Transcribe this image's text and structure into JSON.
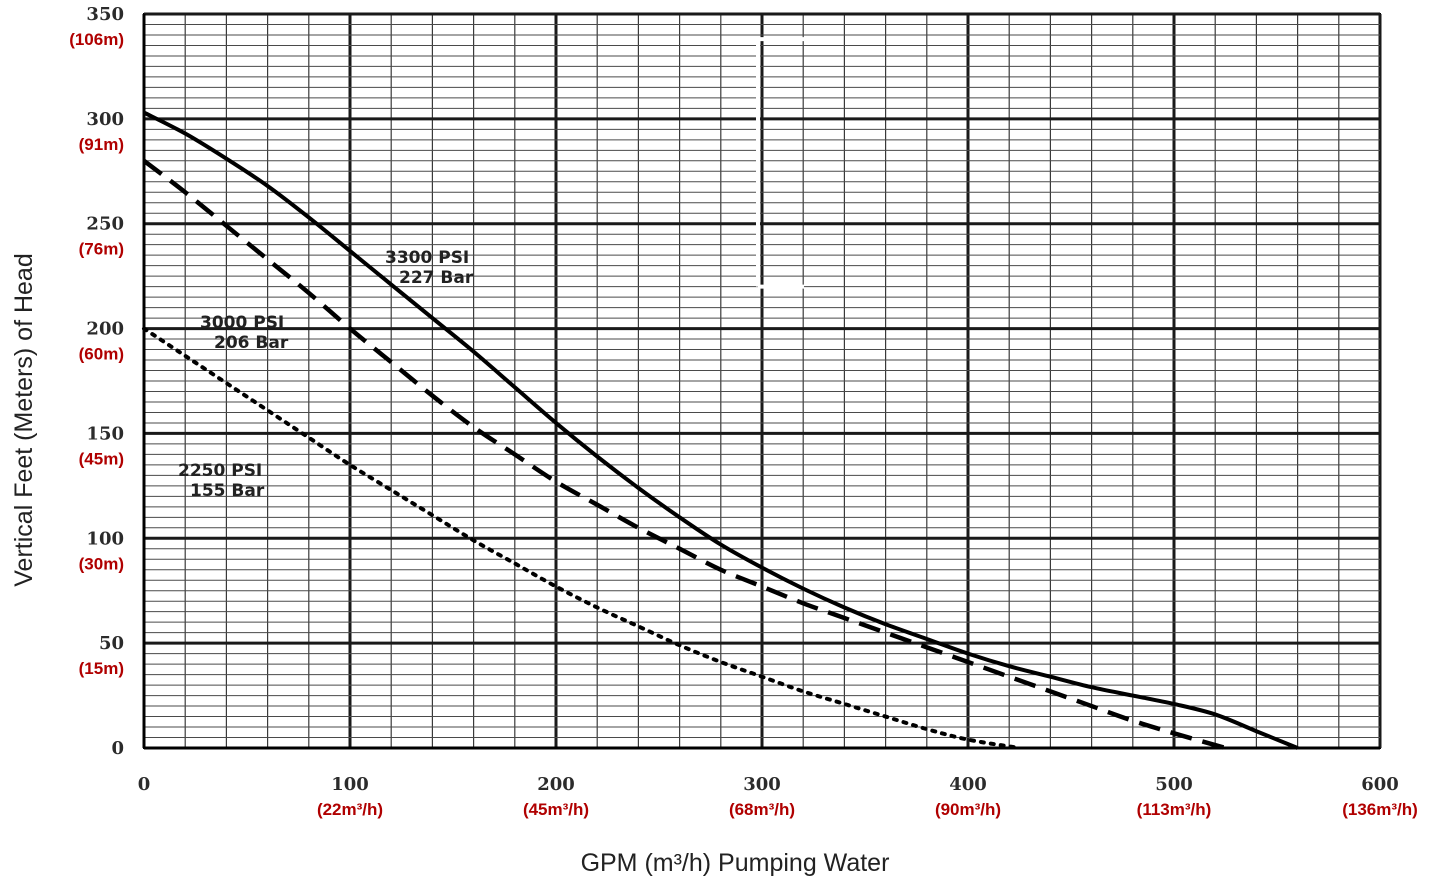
{
  "chart_data": {
    "type": "line",
    "xlabel": "GPM (m³/h) Pumping Water",
    "ylabel": "Vertical Feet (Meters) of Head",
    "xlim": [
      0,
      600
    ],
    "ylim": [
      0,
      350
    ],
    "grid": true,
    "x_ticks": [
      {
        "value": 0,
        "label": "0",
        "metric": ""
      },
      {
        "value": 100,
        "label": "100",
        "metric": "(22m³/h)"
      },
      {
        "value": 200,
        "label": "200",
        "metric": "(45m³/h)"
      },
      {
        "value": 300,
        "label": "300",
        "metric": "(68m³/h)"
      },
      {
        "value": 400,
        "label": "400",
        "metric": "(90m³/h)"
      },
      {
        "value": 500,
        "label": "500",
        "metric": "(113m³/h)"
      },
      {
        "value": 600,
        "label": "600",
        "metric": "(136m³/h)"
      }
    ],
    "y_ticks": [
      {
        "value": 0,
        "label": "0",
        "metric": ""
      },
      {
        "value": 50,
        "label": "50",
        "metric": "(15m)"
      },
      {
        "value": 100,
        "label": "100",
        "metric": "(30m)"
      },
      {
        "value": 150,
        "label": "150",
        "metric": "(45m)"
      },
      {
        "value": 200,
        "label": "200",
        "metric": "(60m)"
      },
      {
        "value": 250,
        "label": "250",
        "metric": "(76m)"
      },
      {
        "value": 300,
        "label": "300",
        "metric": "(91m)"
      },
      {
        "value": 350,
        "label": "350",
        "metric": "(106m)"
      }
    ],
    "series": [
      {
        "name": "3300 PSI 227 Bar",
        "label_lines": [
          "3300 PSI",
          "227 Bar"
        ],
        "style": "solid",
        "x": [
          0,
          20,
          40,
          60,
          80,
          100,
          120,
          140,
          160,
          180,
          200,
          220,
          240,
          260,
          280,
          300,
          320,
          340,
          360,
          380,
          400,
          420,
          440,
          460,
          480,
          500,
          520,
          540,
          560
        ],
        "y": [
          303,
          293,
          281,
          268,
          253,
          237,
          221,
          205,
          189,
          172,
          155,
          139,
          124,
          110,
          97,
          86,
          76,
          67,
          59,
          52,
          45,
          39,
          34,
          29,
          25,
          21,
          16,
          8,
          0
        ]
      },
      {
        "name": "3000 PSI 206 Bar",
        "label_lines": [
          "3000 PSI",
          "206 Bar"
        ],
        "style": "dashed",
        "x": [
          0,
          20,
          40,
          60,
          80,
          100,
          120,
          140,
          160,
          180,
          200,
          220,
          240,
          260,
          280,
          300,
          320,
          340,
          360,
          380,
          400,
          420,
          440,
          460,
          480,
          500,
          525
        ],
        "y": [
          280,
          265,
          249,
          233,
          217,
          200,
          184,
          168,
          153,
          140,
          127,
          116,
          105,
          95,
          85,
          77,
          69,
          62,
          55,
          48,
          41,
          34,
          27,
          20,
          13,
          7,
          0
        ]
      },
      {
        "name": "2250 PSI 155 Bar",
        "label_lines": [
          "2250 PSI",
          "155 Bar"
        ],
        "style": "dotted",
        "x": [
          0,
          20,
          40,
          60,
          80,
          100,
          120,
          140,
          160,
          180,
          200,
          220,
          240,
          260,
          280,
          300,
          320,
          340,
          360,
          380,
          400,
          425
        ],
        "y": [
          200,
          187,
          174,
          161,
          148,
          135,
          123,
          111,
          99,
          88,
          77,
          67,
          58,
          49,
          41,
          34,
          27,
          21,
          15,
          9,
          4,
          0
        ]
      }
    ],
    "annotation_bracket": {
      "x": 300,
      "y_top": 338,
      "y_bottom": 220
    }
  }
}
